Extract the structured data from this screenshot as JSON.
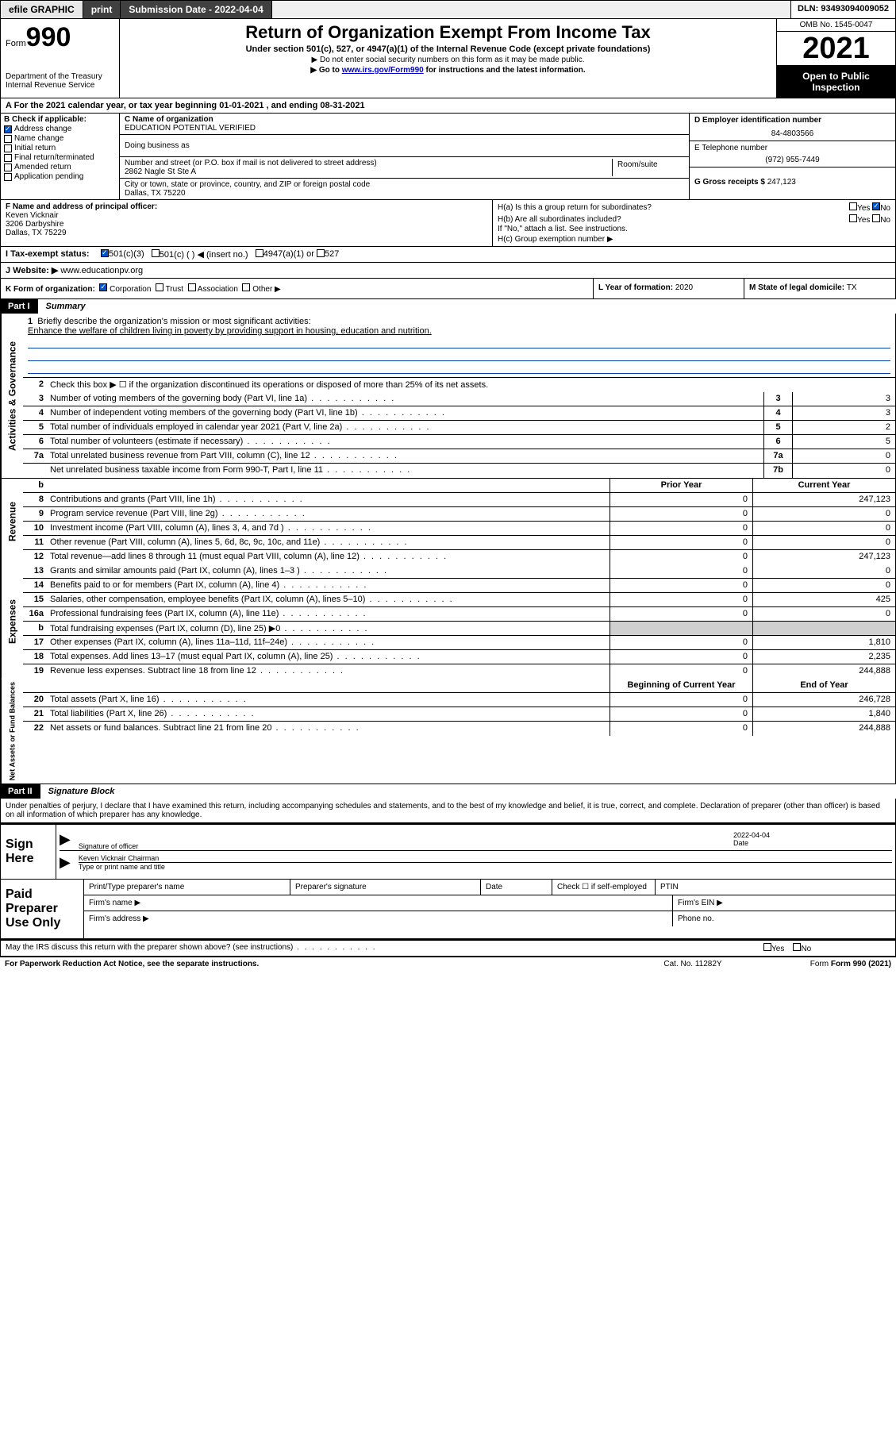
{
  "topbar": {
    "efile": "efile GRAPHIC",
    "print": "print",
    "subdate_label": "Submission Date - ",
    "subdate": "2022-04-04",
    "dln_label": "DLN: ",
    "dln": "93493094009052"
  },
  "header": {
    "form_label": "Form",
    "form_num": "990",
    "dept": "Department of the Treasury\nInternal Revenue Service",
    "title": "Return of Organization Exempt From Income Tax",
    "sub": "Under section 501(c), 527, or 4947(a)(1) of the Internal Revenue Code (except private foundations)",
    "note1": "▶ Do not enter social security numbers on this form as it may be made public.",
    "note2_pre": "▶ Go to ",
    "note2_link": "www.irs.gov/Form990",
    "note2_post": " for instructions and the latest information.",
    "omb": "OMB No. 1545-0047",
    "year": "2021",
    "open": "Open to Public Inspection"
  },
  "line_a": "A  For the 2021 calendar year, or tax year beginning 01-01-2021   , and ending 08-31-2021",
  "section_b": {
    "label": "B Check if applicable:",
    "checks": [
      {
        "label": "Address change",
        "checked": true
      },
      {
        "label": "Name change",
        "checked": false
      },
      {
        "label": "Initial return",
        "checked": false
      },
      {
        "label": "Final return/terminated",
        "checked": false
      },
      {
        "label": "Amended return",
        "checked": false
      },
      {
        "label": "Application pending",
        "checked": false
      }
    ],
    "c_label": "C Name of organization",
    "c_value": "EDUCATION POTENTIAL VERIFIED",
    "dba_label": "Doing business as",
    "addr_label": "Number and street (or P.O. box if mail is not delivered to street address)",
    "room_label": "Room/suite",
    "addr": "2862 Nagle St Ste A",
    "city_label": "City or town, state or province, country, and ZIP or foreign postal code",
    "city": "Dallas, TX  75220",
    "d_label": "D Employer identification number",
    "d_value": "84-4803566",
    "e_label": "E Telephone number",
    "e_value": "(972) 955-7449",
    "g_label": "G Gross receipts $ ",
    "g_value": "247,123"
  },
  "section_f": {
    "label": "F  Name and address of principal officer:",
    "name": "Keven Vicknair",
    "addr1": "3206 Darbyshire",
    "addr2": "Dallas, TX  75229"
  },
  "section_h": {
    "ha": "H(a)  Is this a group return for subordinates?",
    "hb": "H(b)  Are all subordinates included?",
    "hb_note": "If \"No,\" attach a list. See instructions.",
    "hc": "H(c)  Group exemption number ▶",
    "yes": "Yes",
    "no": "No"
  },
  "section_i": {
    "label": "I     Tax-exempt status:",
    "c3": "501(c)(3)",
    "c": "501(c) (  ) ◀ (insert no.)",
    "a1": "4947(a)(1) or",
    "s527": "527"
  },
  "section_j": {
    "label": "J     Website: ▶ ",
    "value": "www.educationpv.org"
  },
  "section_k": {
    "label": "K Form of organization:",
    "corp": "Corporation",
    "trust": "Trust",
    "assoc": "Association",
    "other": "Other ▶"
  },
  "section_l": {
    "label": "L Year of formation: ",
    "value": "2020"
  },
  "section_m": {
    "label": "M State of legal domicile: ",
    "value": "TX"
  },
  "part1": {
    "label": "Part I",
    "title": "Summary"
  },
  "summary": {
    "q1": "Briefly describe the organization's mission or most significant activities:",
    "mission": "Enhance the welfare of children living in poverty by providing support in housing, education and nutrition.",
    "q2": "Check this box ▶ ☐  if the organization discontinued its operations or disposed of more than 25% of its net assets.",
    "rows_ag": [
      {
        "n": "3",
        "desc": "Number of voting members of the governing body (Part VI, line 1a)",
        "box": "3",
        "val": "3"
      },
      {
        "n": "4",
        "desc": "Number of independent voting members of the governing body (Part VI, line 1b)",
        "box": "4",
        "val": "3"
      },
      {
        "n": "5",
        "desc": "Total number of individuals employed in calendar year 2021 (Part V, line 2a)",
        "box": "5",
        "val": "2"
      },
      {
        "n": "6",
        "desc": "Total number of volunteers (estimate if necessary)",
        "box": "6",
        "val": "5"
      },
      {
        "n": "7a",
        "desc": "Total unrelated business revenue from Part VIII, column (C), line 12",
        "box": "7a",
        "val": "0"
      },
      {
        "n": "",
        "desc": "Net unrelated business taxable income from Form 990-T, Part I, line 11",
        "box": "7b",
        "val": "0"
      }
    ],
    "col_headers": {
      "b": "b",
      "prior": "Prior Year",
      "curr": "Current Year"
    },
    "rows_rev": [
      {
        "n": "8",
        "desc": "Contributions and grants (Part VIII, line 1h)",
        "prior": "0",
        "curr": "247,123"
      },
      {
        "n": "9",
        "desc": "Program service revenue (Part VIII, line 2g)",
        "prior": "0",
        "curr": "0"
      },
      {
        "n": "10",
        "desc": "Investment income (Part VIII, column (A), lines 3, 4, and 7d )",
        "prior": "0",
        "curr": "0"
      },
      {
        "n": "11",
        "desc": "Other revenue (Part VIII, column (A), lines 5, 6d, 8c, 9c, 10c, and 11e)",
        "prior": "0",
        "curr": "0"
      },
      {
        "n": "12",
        "desc": "Total revenue—add lines 8 through 11 (must equal Part VIII, column (A), line 12)",
        "prior": "0",
        "curr": "247,123"
      }
    ],
    "rows_exp": [
      {
        "n": "13",
        "desc": "Grants and similar amounts paid (Part IX, column (A), lines 1–3 )",
        "prior": "0",
        "curr": "0"
      },
      {
        "n": "14",
        "desc": "Benefits paid to or for members (Part IX, column (A), line 4)",
        "prior": "0",
        "curr": "0"
      },
      {
        "n": "15",
        "desc": "Salaries, other compensation, employee benefits (Part IX, column (A), lines 5–10)",
        "prior": "0",
        "curr": "425"
      },
      {
        "n": "16a",
        "desc": "Professional fundraising fees (Part IX, column (A), line 11e)",
        "prior": "0",
        "curr": "0"
      },
      {
        "n": "b",
        "desc": "Total fundraising expenses (Part IX, column (D), line 25) ▶0",
        "prior": "",
        "curr": "",
        "shaded": true
      },
      {
        "n": "17",
        "desc": "Other expenses (Part IX, column (A), lines 11a–11d, 11f–24e)",
        "prior": "0",
        "curr": "1,810"
      },
      {
        "n": "18",
        "desc": "Total expenses. Add lines 13–17 (must equal Part IX, column (A), line 25)",
        "prior": "0",
        "curr": "2,235"
      },
      {
        "n": "19",
        "desc": "Revenue less expenses. Subtract line 18 from line 12",
        "prior": "0",
        "curr": "244,888"
      }
    ],
    "na_headers": {
      "beg": "Beginning of Current Year",
      "end": "End of Year"
    },
    "rows_na": [
      {
        "n": "20",
        "desc": "Total assets (Part X, line 16)",
        "prior": "0",
        "curr": "246,728"
      },
      {
        "n": "21",
        "desc": "Total liabilities (Part X, line 26)",
        "prior": "0",
        "curr": "1,840"
      },
      {
        "n": "22",
        "desc": "Net assets or fund balances. Subtract line 21 from line 20",
        "prior": "0",
        "curr": "244,888"
      }
    ]
  },
  "vert_labels": {
    "ag": "Activities & Governance",
    "rev": "Revenue",
    "exp": "Expenses",
    "na": "Net Assets or Fund Balances"
  },
  "part2": {
    "label": "Part II",
    "title": "Signature Block",
    "perjury": "Under penalties of perjury, I declare that I have examined this return, including accompanying schedules and statements, and to the best of my knowledge and belief, it is true, correct, and complete. Declaration of preparer (other than officer) is based on all information of which preparer has any knowledge."
  },
  "sign": {
    "here": "Sign Here",
    "sig_label": "Signature of officer",
    "date_label": "Date",
    "date": "2022-04-04",
    "name": "Keven Vicknair  Chairman",
    "name_label": "Type or print name and title"
  },
  "paid": {
    "label": "Paid Preparer Use Only",
    "print_name": "Print/Type preparer's name",
    "sig": "Preparer's signature",
    "date": "Date",
    "check_se": "Check ☐ if self-employed",
    "ptin": "PTIN",
    "firm_name": "Firm's name   ▶",
    "firm_ein": "Firm's EIN ▶",
    "firm_addr": "Firm's address ▶",
    "phone": "Phone no."
  },
  "footer": {
    "discuss": "May the IRS discuss this return with the preparer shown above? (see instructions)",
    "yes": "Yes",
    "no": "No",
    "pra": "For Paperwork Reduction Act Notice, see the separate instructions.",
    "cat": "Cat. No. 11282Y",
    "form": "Form 990 (2021)"
  },
  "colors": {
    "link": "#0000cc",
    "check_blue": "#0055cc",
    "line_blue": "#0044aa",
    "shade": "#d0d0d0"
  }
}
